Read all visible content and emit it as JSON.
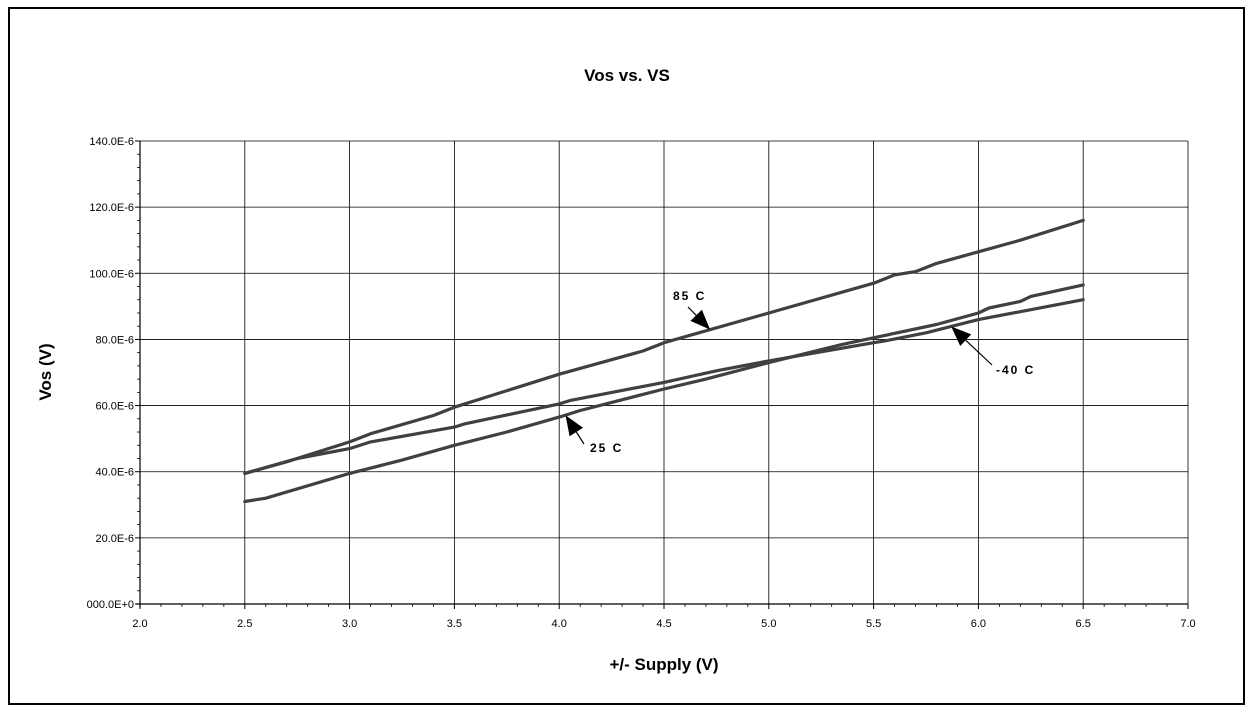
{
  "chart_data": {
    "type": "line",
    "title": "Vos vs. VS",
    "xlabel": "+/- Supply (V)",
    "ylabel": "Vos (V)",
    "xlim": [
      2.0,
      7.0
    ],
    "ylim": [
      0,
      0.00014
    ],
    "x_ticks": [
      2.0,
      2.5,
      3.0,
      3.5,
      4.0,
      4.5,
      5.0,
      5.5,
      6.0,
      6.5,
      7.0
    ],
    "x_tick_labels": [
      "2.0",
      "2.5",
      "3.0",
      "3.5",
      "4.0",
      "4.5",
      "5.0",
      "5.5",
      "6.0",
      "6.5",
      "7.0"
    ],
    "y_ticks": [
      0,
      2e-05,
      4e-05,
      6e-05,
      8e-05,
      0.0001,
      0.00012,
      0.00014
    ],
    "y_tick_labels": [
      "000.0E+0",
      "20.0E-6",
      "40.0E-6",
      "60.0E-6",
      "80.0E-6",
      "100.0E-6",
      "120.0E-6",
      "140.0E-6"
    ],
    "grid": true,
    "line_color": "#404040",
    "series": [
      {
        "name": "85 C",
        "x": [
          2.5,
          2.7,
          3.0,
          3.1,
          3.4,
          3.5,
          3.9,
          4.0,
          4.4,
          4.5,
          5.0,
          5.5,
          5.6,
          5.7,
          5.8,
          6.0,
          6.2,
          6.5
        ],
        "y": [
          3.95e-05,
          4.3e-05,
          4.9e-05,
          5.15e-05,
          5.7e-05,
          5.95e-05,
          6.75e-05,
          6.95e-05,
          7.65e-05,
          7.9e-05,
          8.8e-05,
          9.7e-05,
          9.95e-05,
          0.0001005,
          0.000103,
          0.0001065,
          0.00011,
          0.000116
        ]
      },
      {
        "name": "-40 C",
        "x": [
          2.5,
          2.75,
          3.0,
          3.1,
          3.5,
          3.55,
          4.0,
          4.05,
          4.5,
          4.75,
          5.0,
          5.5,
          5.55,
          5.75,
          6.0,
          6.5
        ],
        "y": [
          3.95e-05,
          4.4e-05,
          4.7e-05,
          4.9e-05,
          5.35e-05,
          5.45e-05,
          6.05e-05,
          6.15e-05,
          6.7e-05,
          7.05e-05,
          7.35e-05,
          7.9e-05,
          7.95e-05,
          8.2e-05,
          8.6e-05,
          9.2e-05
        ]
      },
      {
        "name": "25 C",
        "x": [
          2.5,
          2.6,
          3.0,
          3.25,
          3.5,
          3.75,
          4.0,
          4.1,
          4.5,
          4.7,
          5.0,
          5.35,
          5.5,
          5.8,
          6.0,
          6.05,
          6.2,
          6.25,
          6.5
        ],
        "y": [
          3.1e-05,
          3.2e-05,
          3.95e-05,
          4.35e-05,
          4.8e-05,
          5.2e-05,
          5.65e-05,
          5.85e-05,
          6.5e-05,
          6.8e-05,
          7.3e-05,
          7.85e-05,
          8.05e-05,
          8.45e-05,
          8.8e-05,
          8.95e-05,
          9.15e-05,
          9.3e-05,
          9.65e-05
        ]
      }
    ],
    "annotations": [
      {
        "label": "85 C",
        "series": "85 C"
      },
      {
        "label": "-40 C",
        "series": "-40 C"
      },
      {
        "label": "25 C",
        "series": "25 C"
      }
    ]
  }
}
